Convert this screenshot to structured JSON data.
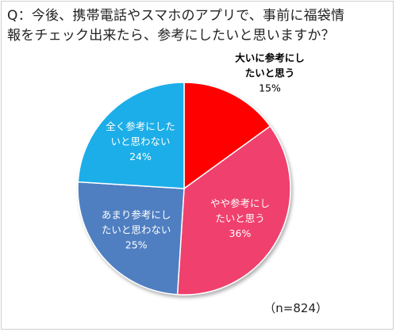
{
  "chart_data": {
    "type": "pie",
    "title": "Q：今後、携帯電話やスマホのアプリで、事前に福袋情報をチェック出来たら、参考にしたいと思いますか？",
    "title_lines": [
      "Q：今後、携帯電話やスマホのアプリで、事前に福袋情",
      "報をチェック出来たら、参考にしたいと思いますか？"
    ],
    "slices": [
      {
        "lines": [
          "大いに参考にし",
          "たいと思う"
        ],
        "value": 15,
        "pct": "15%",
        "color": "#ff0000",
        "label_color": "#000000"
      },
      {
        "lines": [
          "やや参考にし",
          "たいと思う"
        ],
        "value": 36,
        "pct": "36%",
        "color": "#f0416e",
        "label_color": "#ffffff"
      },
      {
        "lines": [
          "あまり参考にし",
          "たいと思わない"
        ],
        "value": 25,
        "pct": "25%",
        "color": "#4f7fc1",
        "label_color": "#ffffff"
      },
      {
        "lines": [
          "全く参考にした",
          "いと思わない"
        ],
        "value": 24,
        "pct": "24%",
        "color": "#1eaee8",
        "label_color": "#ffffff"
      }
    ],
    "start": "12 o'clock",
    "direction": "clockwise",
    "legend": "none",
    "note": "（n=824）"
  }
}
